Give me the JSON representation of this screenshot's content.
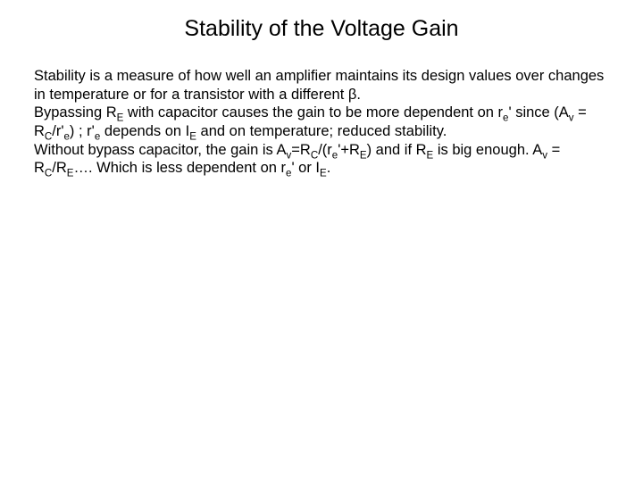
{
  "title": "Stability of the Voltage Gain",
  "paragraphs": {
    "p1": "Stability is a measure of how well an amplifier maintains its design values over changes in temperature or for a transistor with a different β.",
    "p2_pre": "Bypassing R",
    "p2_sub1": "E",
    "p2_mid1": " with capacitor causes the gain to be more dependent on r",
    "p2_sub2": "e",
    "p2_mid2": "' since (A",
    "p2_sub3": "v",
    "p2_mid3": " = R",
    "p2_sub4": "C",
    "p2_mid4": "/r'",
    "p2_sub5": "e",
    "p2_mid5": ") ;  r'",
    "p2_sub6": "e",
    "p2_mid6": " depends on I",
    "p2_sub7": "E",
    "p2_mid7": " and on temperature; reduced stability.",
    "p3_pre": "Without bypass capacitor, the gain is A",
    "p3_sub1": "v",
    "p3_mid1": "=R",
    "p3_sub2": "C",
    "p3_mid2": "/(r",
    "p3_sub3": "e",
    "p3_mid3": "'+R",
    "p3_sub4": "E",
    "p3_mid4": ") and if R",
    "p3_sub5": "E",
    "p3_mid5": " is big enough. A",
    "p3_sub6": "v",
    "p3_mid6": " = R",
    "p3_sub7": "C",
    "p3_mid7": "/R",
    "p3_sub8": "E",
    "p3_mid8": "…. Which is less dependent on r",
    "p3_sub9": "e",
    "p3_mid9": "' or I",
    "p3_sub10": "E",
    "p3_mid10": "."
  },
  "style": {
    "background_color": "#ffffff",
    "title_color": "#000000",
    "title_fontsize": 25,
    "body_color": "#000000",
    "body_fontsize": 16.5
  }
}
